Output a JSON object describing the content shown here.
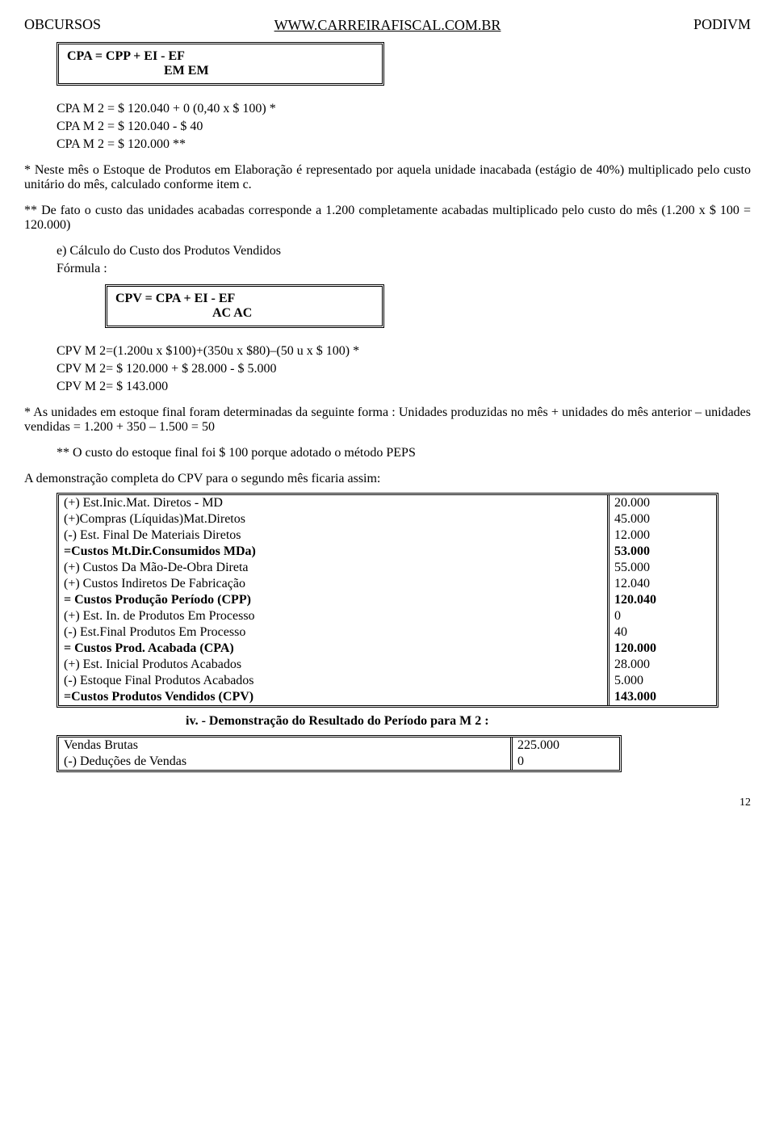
{
  "header": {
    "left": "OBCURSOS",
    "right": "PODIVM",
    "center": "WWW.CARREIRAFISCAL.COM.BR"
  },
  "formula1": {
    "line1": "CPA = CPP + EI    -    EF",
    "line2": "EM        EM"
  },
  "cpa_calc": {
    "l1": "CPA M 2 = $ 120.040  + 0  (0,40 x $ 100) *",
    "l2": "CPA M 2 = $ 120.040 - $ 40",
    "l3": "CPA M 2 = $ 120.000 **"
  },
  "note1": "* Neste mês o Estoque de Produtos em  Elaboração é representado por aquela unidade inacabada (estágio  de 40%)  multiplicado pelo custo unitário do mês, calculado conforme item c.",
  "note2": "** De fato o custo das unidades acabadas corresponde a 1.200 completamente acabadas multiplicado pelo custo do mês (1.200 x $ 100 = 120.000)",
  "section_e": {
    "title": "e) Cálculo do Custo dos Produtos Vendidos",
    "subtitle": " Fórmula :"
  },
  "formula2": {
    "line1": "CPV = CPA + EI    -    EF",
    "line2": "AC            AC"
  },
  "cpv_calc": {
    "l1": "CPV M 2=(1.200u x $100)+(350u x $80)–(50 u x $ 100) *",
    "l2": "CPV M 2= $ 120.000 +  $ 28.000  - $ 5.000",
    "l3": "CPV M 2= $ 143.000"
  },
  "note3": "* As unidades em estoque final foram determinadas da seguinte forma : Unidades produzidas no mês + unidades do mês anterior – unidades vendidas = 1.200 + 350 – 1.500 = 50",
  "note4": "** O custo do estoque final foi  $ 100 porque adotado o método PEPS",
  "heading2": "A demonstração completa do CPV para o segundo mês ficaria assim:",
  "cpv_table": [
    {
      "label": "(+) Est.Inic.Mat. Diretos - MD",
      "value": "20.000",
      "bold": false
    },
    {
      "label": "(+)Compras (Líquidas)Mat.Diretos",
      "value": "45.000",
      "bold": false
    },
    {
      "label": "(-)  Est. Final De Materiais Diretos",
      "value": "12.000",
      "bold": false
    },
    {
      "label": "=Custos Mt.Dir.Consumidos MDa)",
      "value": "53.000",
      "bold": true
    },
    {
      "label": "(+) Custos Da Mão-De-Obra Direta",
      "value": "55.000",
      "bold": false
    },
    {
      "label": "(+) Custos Indiretos De Fabricação",
      "value": "12.040",
      "bold": false
    },
    {
      "label": "= Custos Produção Período (CPP)",
      "value": "120.040",
      "bold": true
    },
    {
      "label": "(+) Est. In. de Produtos Em Processo",
      "value": "0",
      "bold": false
    },
    {
      "label": "(-) Est.Final  Produtos Em Processo",
      "value": "40",
      "bold": false
    },
    {
      "label": "= Custos Prod. Acabada (CPA)",
      "value": "120.000",
      "bold": true
    },
    {
      "label": "(+) Est. Inicial Produtos Acabados",
      "value": "28.000",
      "bold": false
    },
    {
      "label": "(-) Estoque Final Produtos Acabados",
      "value": "5.000",
      "bold": false
    },
    {
      "label": "=Custos Produtos Vendidos (CPV)",
      "value": "143.000",
      "bold": true
    }
  ],
  "table_footer": "iv.   -  Demonstração do Resultado do Período para M 2 :",
  "vendas_table": [
    {
      "label": "Vendas Brutas",
      "value": "225.000"
    },
    {
      "label": "(-) Deduções de Vendas",
      "value": "0"
    }
  ],
  "page_number": "12"
}
